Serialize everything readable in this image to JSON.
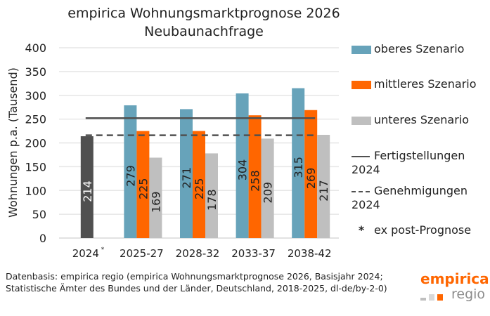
{
  "chart_data": {
    "type": "bar",
    "title": "empirica Wohnungsmarktprognose 2026",
    "subtitle": "Neubaunachfrage",
    "ylabel": "Wohnungen p.a. (Tausend)",
    "xlabel": "",
    "ylim": [
      0,
      400
    ],
    "yticks": [
      0,
      50,
      100,
      150,
      200,
      250,
      300,
      350,
      400
    ],
    "grid": true,
    "legend_position": "right",
    "categories": [
      "2024",
      "2025-27",
      "2028-32",
      "2033-37",
      "2038-42"
    ],
    "category_marks": [
      "*",
      "",
      "",
      "",
      ""
    ],
    "ex_post": {
      "category": "2024",
      "value": 214,
      "color": "#505050"
    },
    "series": [
      {
        "name": "oberes Szenario",
        "color": "#67A3BA",
        "values": [
          null,
          279,
          271,
          304,
          315
        ]
      },
      {
        "name": "mittleres Szenario",
        "color": "#FF6600",
        "values": [
          null,
          225,
          225,
          258,
          269
        ]
      },
      {
        "name": "unteres Szenario",
        "color": "#BFBFBF",
        "values": [
          null,
          169,
          178,
          209,
          217
        ]
      }
    ],
    "reference_lines": [
      {
        "name": "Fertigstellungen 2024",
        "value": 252,
        "style": "solid",
        "color": "#505050"
      },
      {
        "name": "Genehmigungen 2024",
        "value": 216,
        "style": "dashed",
        "color": "#505050"
      }
    ],
    "footnote_legend": {
      "symbol": "*",
      "label": "ex post-Prognose"
    }
  },
  "source": "Datenbasis: empirica regio (empirica Wohnungsmarktprognose 2026, Basisjahr 2024; Statistische Ämter des Bundes und der Länder, Deutschland, 2018-2025, dl-de/by-2-0)",
  "logo": {
    "line1": "empirica",
    "line2": "regio",
    "colors": [
      "#BFBFBF",
      "#D9D9D9",
      "#FF6600"
    ]
  }
}
